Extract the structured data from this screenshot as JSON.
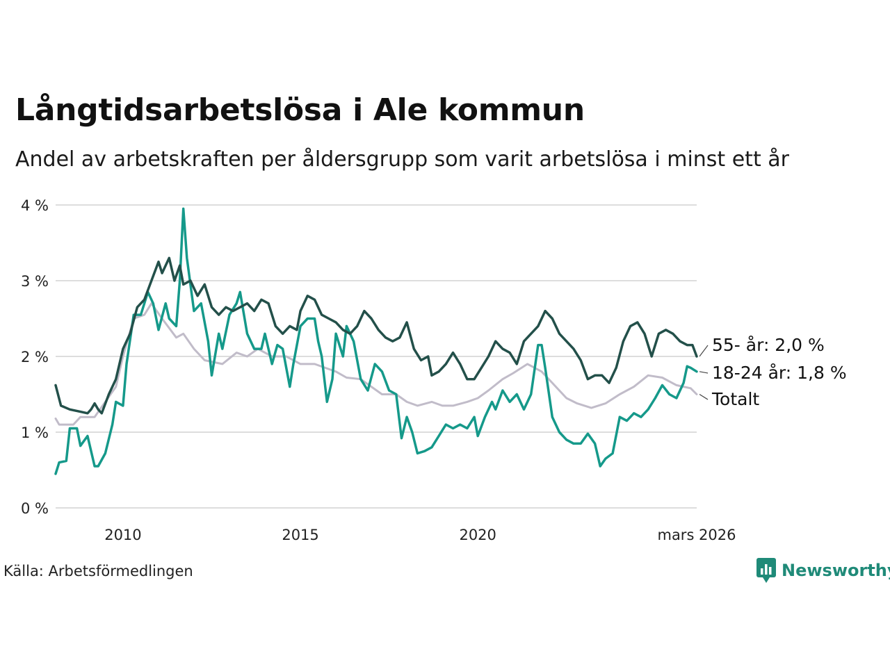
{
  "title": "Långtidsarbetslösa i Ale kommun",
  "subtitle": "Andel av arbetskraften per åldersgrupp som varit arbetslösa i minst ett år",
  "source": "Källa: Arbetsförmedlingen",
  "brand": {
    "name": "Newsworthy",
    "icon": "newsworthy-logo-icon"
  },
  "colors": {
    "s55": "#23504a",
    "s1824": "#15998a",
    "total": "#c1bcc9",
    "grid": "#dddddd"
  },
  "chart_data": {
    "type": "line",
    "x_range": [
      2008.1,
      2026.17
    ],
    "ylim": [
      0,
      4
    ],
    "yticks": [
      {
        "value": 0,
        "label": "0 %"
      },
      {
        "value": 1,
        "label": "1 %"
      },
      {
        "value": 2,
        "label": "2 %"
      },
      {
        "value": 3,
        "label": "3 %"
      },
      {
        "value": 4,
        "label": "4 %"
      }
    ],
    "xticks": [
      {
        "value": 2010,
        "label": "2010"
      },
      {
        "value": 2015,
        "label": "2015"
      },
      {
        "value": 2020,
        "label": "2020"
      },
      {
        "value": 2026.17,
        "label": "mars 2026"
      }
    ],
    "series": [
      {
        "name": "Totalt",
        "color_key": "total",
        "label": "Totalt",
        "points": [
          [
            2008.1,
            1.18
          ],
          [
            2008.2,
            1.1
          ],
          [
            2008.6,
            1.1
          ],
          [
            2008.8,
            1.2
          ],
          [
            2009.2,
            1.2
          ],
          [
            2009.5,
            1.4
          ],
          [
            2009.8,
            1.6
          ],
          [
            2010.0,
            2.0
          ],
          [
            2010.3,
            2.5
          ],
          [
            2010.6,
            2.55
          ],
          [
            2010.8,
            2.7
          ],
          [
            2011.1,
            2.5
          ],
          [
            2011.5,
            2.25
          ],
          [
            2011.7,
            2.3
          ],
          [
            2012.0,
            2.1
          ],
          [
            2012.3,
            1.95
          ],
          [
            2012.8,
            1.9
          ],
          [
            2013.2,
            2.05
          ],
          [
            2013.5,
            2.0
          ],
          [
            2013.8,
            2.1
          ],
          [
            2014.2,
            2.0
          ],
          [
            2014.6,
            2.0
          ],
          [
            2015.0,
            1.9
          ],
          [
            2015.4,
            1.9
          ],
          [
            2015.7,
            1.85
          ],
          [
            2016.0,
            1.8
          ],
          [
            2016.3,
            1.72
          ],
          [
            2016.7,
            1.7
          ],
          [
            2017.0,
            1.6
          ],
          [
            2017.3,
            1.5
          ],
          [
            2017.7,
            1.5
          ],
          [
            2018.0,
            1.4
          ],
          [
            2018.3,
            1.35
          ],
          [
            2018.7,
            1.4
          ],
          [
            2019.0,
            1.35
          ],
          [
            2019.3,
            1.35
          ],
          [
            2019.7,
            1.4
          ],
          [
            2020.0,
            1.45
          ],
          [
            2020.3,
            1.55
          ],
          [
            2020.7,
            1.7
          ],
          [
            2021.0,
            1.78
          ],
          [
            2021.4,
            1.9
          ],
          [
            2021.8,
            1.8
          ],
          [
            2022.1,
            1.65
          ],
          [
            2022.5,
            1.45
          ],
          [
            2022.8,
            1.38
          ],
          [
            2023.2,
            1.32
          ],
          [
            2023.6,
            1.38
          ],
          [
            2024.0,
            1.5
          ],
          [
            2024.4,
            1.6
          ],
          [
            2024.8,
            1.75
          ],
          [
            2025.2,
            1.72
          ],
          [
            2025.6,
            1.62
          ],
          [
            2026.0,
            1.58
          ],
          [
            2026.17,
            1.5
          ]
        ]
      },
      {
        "name": "18-24 år",
        "color_key": "s1824",
        "label": "18-24 år: 1,8 %",
        "points": [
          [
            2008.1,
            0.45
          ],
          [
            2008.2,
            0.6
          ],
          [
            2008.4,
            0.62
          ],
          [
            2008.5,
            1.05
          ],
          [
            2008.7,
            1.05
          ],
          [
            2008.8,
            0.82
          ],
          [
            2009.0,
            0.95
          ],
          [
            2009.2,
            0.55
          ],
          [
            2009.3,
            0.55
          ],
          [
            2009.5,
            0.72
          ],
          [
            2009.7,
            1.1
          ],
          [
            2009.8,
            1.4
          ],
          [
            2010.0,
            1.35
          ],
          [
            2010.1,
            1.9
          ],
          [
            2010.3,
            2.55
          ],
          [
            2010.5,
            2.55
          ],
          [
            2010.7,
            2.85
          ],
          [
            2010.85,
            2.7
          ],
          [
            2011.0,
            2.35
          ],
          [
            2011.2,
            2.7
          ],
          [
            2011.3,
            2.5
          ],
          [
            2011.5,
            2.4
          ],
          [
            2011.6,
            3.0
          ],
          [
            2011.7,
            3.95
          ],
          [
            2011.8,
            3.3
          ],
          [
            2012.0,
            2.6
          ],
          [
            2012.2,
            2.7
          ],
          [
            2012.4,
            2.2
          ],
          [
            2012.5,
            1.75
          ],
          [
            2012.7,
            2.3
          ],
          [
            2012.8,
            2.1
          ],
          [
            2013.0,
            2.55
          ],
          [
            2013.2,
            2.7
          ],
          [
            2013.3,
            2.85
          ],
          [
            2013.5,
            2.3
          ],
          [
            2013.7,
            2.1
          ],
          [
            2013.9,
            2.1
          ],
          [
            2014.0,
            2.3
          ],
          [
            2014.2,
            1.9
          ],
          [
            2014.35,
            2.15
          ],
          [
            2014.5,
            2.1
          ],
          [
            2014.7,
            1.6
          ],
          [
            2014.8,
            1.9
          ],
          [
            2015.0,
            2.4
          ],
          [
            2015.2,
            2.5
          ],
          [
            2015.4,
            2.5
          ],
          [
            2015.5,
            2.2
          ],
          [
            2015.6,
            2.0
          ],
          [
            2015.75,
            1.4
          ],
          [
            2015.9,
            1.7
          ],
          [
            2016.0,
            2.3
          ],
          [
            2016.2,
            2.0
          ],
          [
            2016.3,
            2.4
          ],
          [
            2016.5,
            2.2
          ],
          [
            2016.7,
            1.7
          ],
          [
            2016.9,
            1.55
          ],
          [
            2017.1,
            1.9
          ],
          [
            2017.3,
            1.8
          ],
          [
            2017.5,
            1.55
          ],
          [
            2017.7,
            1.5
          ],
          [
            2017.85,
            0.92
          ],
          [
            2018.0,
            1.2
          ],
          [
            2018.15,
            1.0
          ],
          [
            2018.3,
            0.72
          ],
          [
            2018.5,
            0.75
          ],
          [
            2018.7,
            0.8
          ],
          [
            2018.9,
            0.95
          ],
          [
            2019.1,
            1.1
          ],
          [
            2019.3,
            1.05
          ],
          [
            2019.5,
            1.1
          ],
          [
            2019.7,
            1.05
          ],
          [
            2019.9,
            1.2
          ],
          [
            2020.0,
            0.95
          ],
          [
            2020.2,
            1.2
          ],
          [
            2020.4,
            1.4
          ],
          [
            2020.5,
            1.3
          ],
          [
            2020.7,
            1.55
          ],
          [
            2020.9,
            1.4
          ],
          [
            2021.1,
            1.5
          ],
          [
            2021.3,
            1.3
          ],
          [
            2021.5,
            1.5
          ],
          [
            2021.7,
            2.15
          ],
          [
            2021.8,
            2.15
          ],
          [
            2021.9,
            1.85
          ],
          [
            2022.1,
            1.2
          ],
          [
            2022.3,
            1.0
          ],
          [
            2022.5,
            0.9
          ],
          [
            2022.7,
            0.85
          ],
          [
            2022.9,
            0.85
          ],
          [
            2023.1,
            0.98
          ],
          [
            2023.3,
            0.85
          ],
          [
            2023.45,
            0.55
          ],
          [
            2023.6,
            0.65
          ],
          [
            2023.8,
            0.72
          ],
          [
            2024.0,
            1.2
          ],
          [
            2024.2,
            1.15
          ],
          [
            2024.4,
            1.25
          ],
          [
            2024.6,
            1.2
          ],
          [
            2024.8,
            1.3
          ],
          [
            2025.0,
            1.45
          ],
          [
            2025.2,
            1.62
          ],
          [
            2025.4,
            1.5
          ],
          [
            2025.6,
            1.45
          ],
          [
            2025.8,
            1.65
          ],
          [
            2025.9,
            1.87
          ],
          [
            2026.0,
            1.85
          ],
          [
            2026.17,
            1.8
          ]
        ]
      },
      {
        "name": "55- år",
        "color_key": "s55",
        "label": "55- år: 2,0 %",
        "points": [
          [
            2008.1,
            1.62
          ],
          [
            2008.25,
            1.35
          ],
          [
            2008.5,
            1.3
          ],
          [
            2008.8,
            1.27
          ],
          [
            2009.0,
            1.25
          ],
          [
            2009.1,
            1.3
          ],
          [
            2009.2,
            1.38
          ],
          [
            2009.3,
            1.3
          ],
          [
            2009.4,
            1.25
          ],
          [
            2009.6,
            1.5
          ],
          [
            2009.8,
            1.7
          ],
          [
            2010.0,
            2.1
          ],
          [
            2010.2,
            2.3
          ],
          [
            2010.4,
            2.65
          ],
          [
            2010.6,
            2.75
          ],
          [
            2010.8,
            3.0
          ],
          [
            2011.0,
            3.25
          ],
          [
            2011.1,
            3.1
          ],
          [
            2011.3,
            3.3
          ],
          [
            2011.45,
            3.0
          ],
          [
            2011.6,
            3.2
          ],
          [
            2011.7,
            2.95
          ],
          [
            2011.9,
            3.0
          ],
          [
            2012.1,
            2.8
          ],
          [
            2012.3,
            2.95
          ],
          [
            2012.5,
            2.65
          ],
          [
            2012.7,
            2.55
          ],
          [
            2012.9,
            2.65
          ],
          [
            2013.1,
            2.6
          ],
          [
            2013.3,
            2.65
          ],
          [
            2013.5,
            2.7
          ],
          [
            2013.7,
            2.6
          ],
          [
            2013.9,
            2.75
          ],
          [
            2014.1,
            2.7
          ],
          [
            2014.3,
            2.4
          ],
          [
            2014.5,
            2.3
          ],
          [
            2014.7,
            2.4
          ],
          [
            2014.9,
            2.35
          ],
          [
            2015.0,
            2.6
          ],
          [
            2015.2,
            2.8
          ],
          [
            2015.4,
            2.75
          ],
          [
            2015.6,
            2.55
          ],
          [
            2015.8,
            2.5
          ],
          [
            2016.0,
            2.45
          ],
          [
            2016.2,
            2.35
          ],
          [
            2016.4,
            2.3
          ],
          [
            2016.6,
            2.4
          ],
          [
            2016.8,
            2.6
          ],
          [
            2017.0,
            2.5
          ],
          [
            2017.2,
            2.35
          ],
          [
            2017.4,
            2.25
          ],
          [
            2017.6,
            2.2
          ],
          [
            2017.8,
            2.25
          ],
          [
            2018.0,
            2.45
          ],
          [
            2018.2,
            2.1
          ],
          [
            2018.4,
            1.95
          ],
          [
            2018.6,
            2.0
          ],
          [
            2018.7,
            1.75
          ],
          [
            2018.9,
            1.8
          ],
          [
            2019.1,
            1.9
          ],
          [
            2019.3,
            2.05
          ],
          [
            2019.5,
            1.9
          ],
          [
            2019.7,
            1.7
          ],
          [
            2019.9,
            1.7
          ],
          [
            2020.1,
            1.85
          ],
          [
            2020.3,
            2.0
          ],
          [
            2020.5,
            2.2
          ],
          [
            2020.7,
            2.1
          ],
          [
            2020.9,
            2.05
          ],
          [
            2021.1,
            1.9
          ],
          [
            2021.3,
            2.2
          ],
          [
            2021.5,
            2.3
          ],
          [
            2021.7,
            2.4
          ],
          [
            2021.9,
            2.6
          ],
          [
            2022.1,
            2.5
          ],
          [
            2022.3,
            2.3
          ],
          [
            2022.5,
            2.2
          ],
          [
            2022.7,
            2.1
          ],
          [
            2022.9,
            1.95
          ],
          [
            2023.1,
            1.7
          ],
          [
            2023.3,
            1.75
          ],
          [
            2023.5,
            1.75
          ],
          [
            2023.7,
            1.65
          ],
          [
            2023.9,
            1.85
          ],
          [
            2024.1,
            2.2
          ],
          [
            2024.3,
            2.4
          ],
          [
            2024.5,
            2.45
          ],
          [
            2024.7,
            2.3
          ],
          [
            2024.9,
            2.0
          ],
          [
            2025.1,
            2.3
          ],
          [
            2025.3,
            2.35
          ],
          [
            2025.5,
            2.3
          ],
          [
            2025.7,
            2.2
          ],
          [
            2025.9,
            2.15
          ],
          [
            2026.05,
            2.15
          ],
          [
            2026.17,
            2.0
          ]
        ]
      }
    ]
  }
}
